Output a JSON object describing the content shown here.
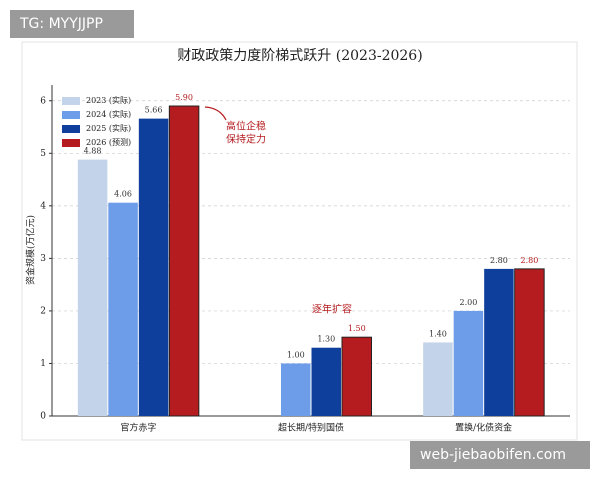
{
  "watermarks": [
    "TG: MYYJJPP",
    "web-jiebaobifen.com"
  ],
  "chart_data": {
    "type": "bar",
    "title": "财政政策力度阶梯式跃升 (2023-2026)",
    "y_label": "资金规模(万亿元)",
    "categories": [
      "官方赤字",
      "超长期/特别国债",
      "置换/化债资金"
    ],
    "series": [
      {
        "name": "2023 (实际)",
        "color": "#c3d3e9",
        "label_color": "#333333",
        "values": [
          4.88,
          null,
          1.4
        ],
        "value_labels": [
          "4.88",
          null,
          "1.40"
        ]
      },
      {
        "name": "2024 (实际)",
        "color": "#6d9ce8",
        "label_color": "#333333",
        "values": [
          4.06,
          1.0,
          2.0
        ],
        "value_labels": [
          "4.06",
          "1.00",
          "2.00"
        ]
      },
      {
        "name": "2025 (实际)",
        "color": "#0e3f9c",
        "label_color": "#333333",
        "values": [
          5.66,
          1.3,
          2.8
        ],
        "value_labels": [
          "5.66",
          "1.30",
          "2.80"
        ]
      },
      {
        "name": "2026 (预测)",
        "color": "#b51c1f",
        "label_color": "#b51c1f",
        "values": [
          5.9,
          1.5,
          2.8
        ],
        "value_labels": [
          "5.90",
          "1.50",
          "2.80"
        ]
      }
    ],
    "annotations": [
      [
        "高位企稳",
        "保持定力"
      ],
      [
        "逐年扩容"
      ]
    ],
    "ylim": [
      0,
      6.3
    ],
    "yticks": [
      0,
      1,
      2,
      3,
      4,
      5,
      6
    ],
    "grid": true,
    "legend": "upper left"
  }
}
